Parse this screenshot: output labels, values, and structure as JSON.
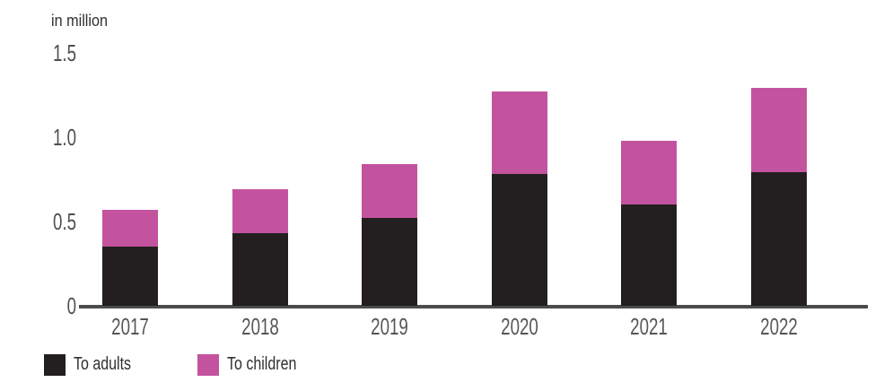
{
  "chart_data": {
    "type": "bar",
    "stacked": true,
    "title": "",
    "unit_label": "in million",
    "categories": [
      "2017",
      "2018",
      "2019",
      "2020",
      "2021",
      "2022"
    ],
    "series": [
      {
        "name": "To adults",
        "color": "#231f20",
        "values": [
          0.35,
          0.43,
          0.52,
          0.78,
          0.6,
          0.79
        ]
      },
      {
        "name": "To children",
        "color": "#c4539f",
        "values": [
          0.22,
          0.26,
          0.32,
          0.49,
          0.38,
          0.5
        ]
      }
    ],
    "totals": [
      0.57,
      0.69,
      0.84,
      1.27,
      0.98,
      1.29
    ],
    "ylim": [
      0,
      1.5
    ],
    "yticks": [
      0,
      0.5,
      1.0,
      1.5
    ],
    "ytick_labels": [
      "0",
      "0.5",
      "1.0",
      "1.5"
    ],
    "xlabel": "",
    "ylabel": "in million",
    "grid": false,
    "legend_position": "bottom"
  }
}
